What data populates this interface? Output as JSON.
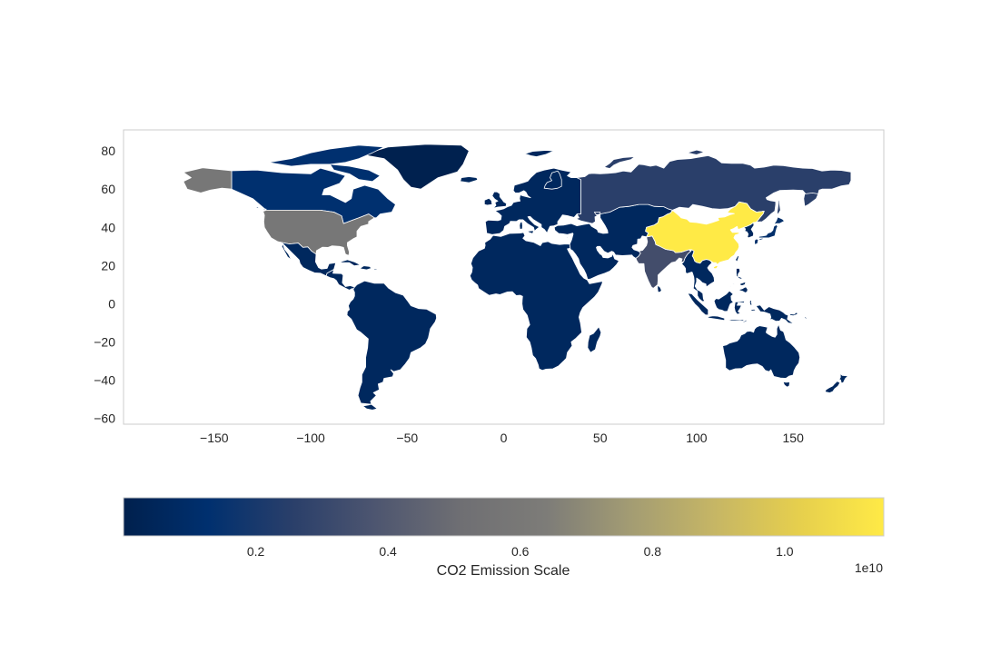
{
  "map": {
    "xaxis": {
      "range": [
        -197,
        197
      ],
      "ticks": [
        -150,
        -100,
        -50,
        0,
        50,
        100,
        150
      ]
    },
    "yaxis": {
      "range": [
        -63,
        91
      ],
      "ticks": [
        80,
        60,
        40,
        20,
        0,
        -20,
        -40,
        -60
      ]
    },
    "grid": false,
    "border_color": "#ffffff",
    "axes_frame_color": "#cccccc",
    "no_data_color": "#ffffff"
  },
  "colormap": {
    "name": "cividis",
    "stops": [
      "#00204d",
      "#00306f",
      "#2a3f6a",
      "#4e5670",
      "#6f6f73",
      "#7d7c78",
      "#a39c73",
      "#c6b665",
      "#e6cf4d",
      "#ffea46"
    ],
    "vmin": 0,
    "vmax": 11500000000
  },
  "colorbar": {
    "label": "CO2 Emission Scale",
    "ticks": [
      0.2,
      0.4,
      0.6,
      0.8,
      1.0
    ],
    "tick_labels": [
      "0.2",
      "0.4",
      "0.6",
      "0.8",
      "1.0"
    ],
    "offset_text": "1e10",
    "orientation": "horizontal"
  },
  "regions": [
    {
      "name": "China",
      "value": 11500000000,
      "color": "#ffea46"
    },
    {
      "name": "United States",
      "value": 5600000000,
      "color": "#777777"
    },
    {
      "name": "India",
      "value": 2600000000,
      "color": "#434d6b"
    },
    {
      "name": "Russia",
      "value": 1900000000,
      "color": "#2a3f6a"
    },
    {
      "name": "Japan",
      "value": 1100000000,
      "color": "#03306b"
    },
    {
      "name": "Canada",
      "value": 600000000,
      "color": "#00306f"
    },
    {
      "name": "Other countries",
      "value": 300000000,
      "color": "#00285e"
    },
    {
      "name": "Greenland",
      "value": 100000000,
      "color": "#00214f"
    }
  ]
}
